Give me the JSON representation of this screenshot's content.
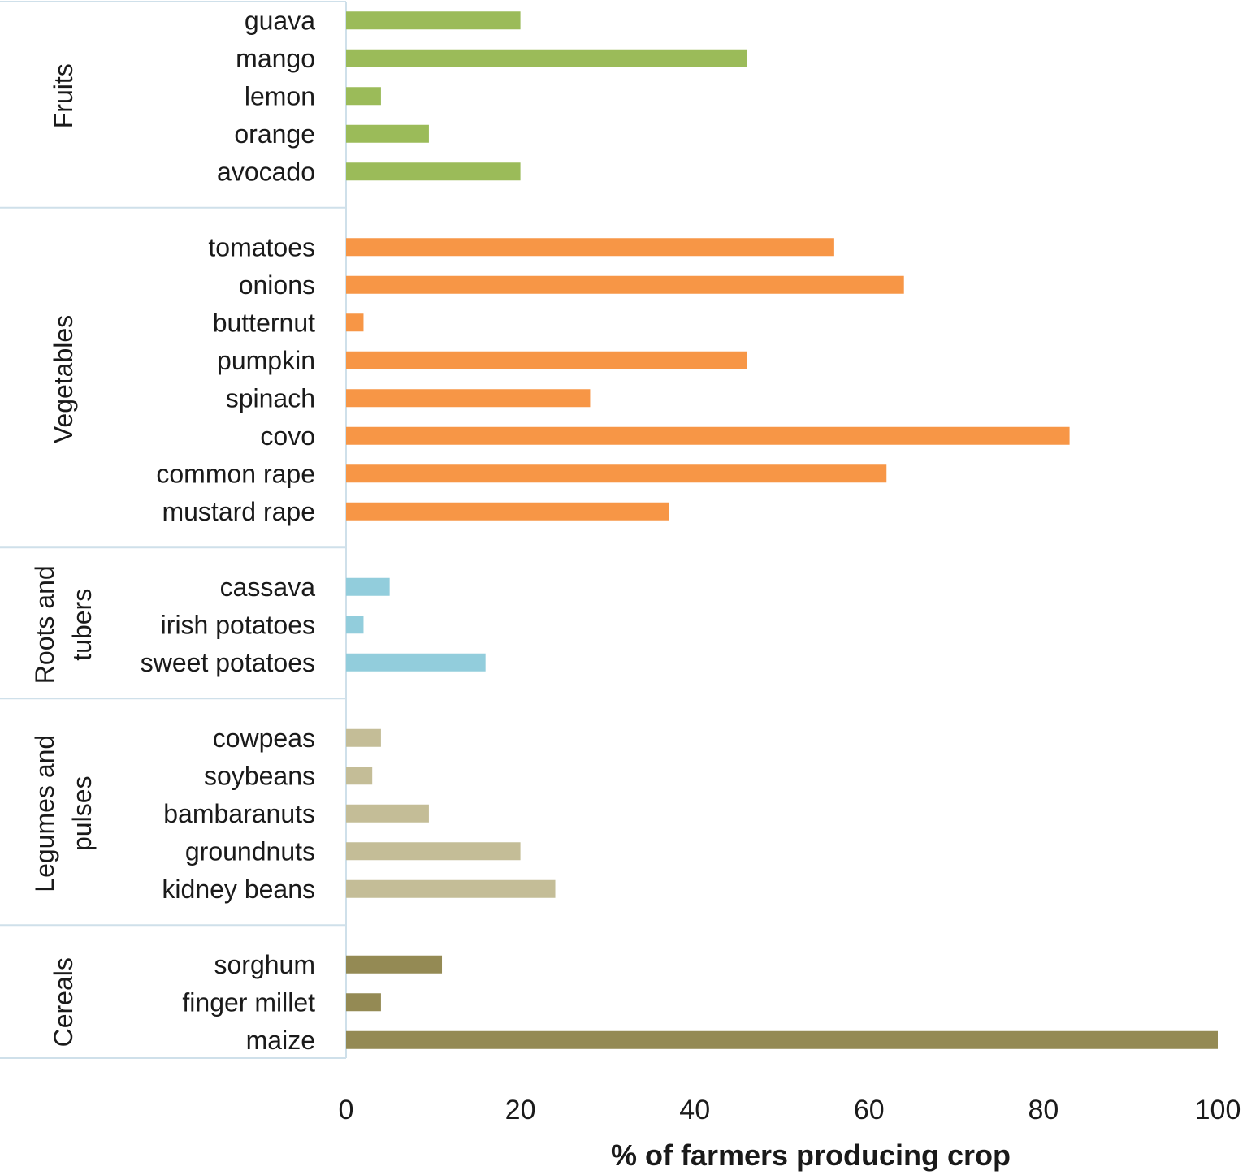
{
  "chart_data": {
    "type": "bar",
    "orientation": "horizontal",
    "title": "",
    "xlabel": "% of farmers producing crop",
    "ylabel": "",
    "xlim": [
      0,
      100
    ],
    "xticks": [
      0,
      20,
      40,
      60,
      80,
      100
    ],
    "grid": false,
    "legend": "none",
    "groups": [
      {
        "name": "Fruits",
        "label_lines": [
          "Fruits"
        ],
        "color": "#9bbb59",
        "items": [
          {
            "label": "guava",
            "value": 20
          },
          {
            "label": "mango",
            "value": 46
          },
          {
            "label": "lemon",
            "value": 4
          },
          {
            "label": "orange",
            "value": 9.5
          },
          {
            "label": "avocado",
            "value": 20
          }
        ]
      },
      {
        "name": "Vegetables",
        "label_lines": [
          "Vegetables"
        ],
        "color": "#f79646",
        "items": [
          {
            "label": "tomatoes",
            "value": 56
          },
          {
            "label": "onions",
            "value": 64
          },
          {
            "label": "butternut",
            "value": 2
          },
          {
            "label": "pumpkin",
            "value": 46
          },
          {
            "label": "spinach",
            "value": 28
          },
          {
            "label": "covo",
            "value": 83
          },
          {
            "label": "common rape",
            "value": 62
          },
          {
            "label": "mustard rape",
            "value": 37
          }
        ]
      },
      {
        "name": "Roots and tubers",
        "label_lines": [
          "Roots and",
          "tubers"
        ],
        "color": "#92cddc",
        "items": [
          {
            "label": "cassava",
            "value": 5
          },
          {
            "label": "irish potatoes",
            "value": 2
          },
          {
            "label": "sweet potatoes",
            "value": 16
          }
        ]
      },
      {
        "name": "Legumes and pulses",
        "label_lines": [
          "Legumes and",
          "pulses"
        ],
        "color": "#c4bd97",
        "items": [
          {
            "label": "cowpeas",
            "value": 4
          },
          {
            "label": "soybeans",
            "value": 3
          },
          {
            "label": "bambaranuts",
            "value": 9.5
          },
          {
            "label": "groundnuts",
            "value": 20
          },
          {
            "label": "kidney beans",
            "value": 24
          }
        ]
      },
      {
        "name": "Cereals",
        "label_lines": [
          "Cereals"
        ],
        "color": "#948a54",
        "items": [
          {
            "label": "sorghum",
            "value": 11
          },
          {
            "label": "finger millet",
            "value": 4
          },
          {
            "label": "maize",
            "value": 100
          }
        ]
      }
    ]
  }
}
